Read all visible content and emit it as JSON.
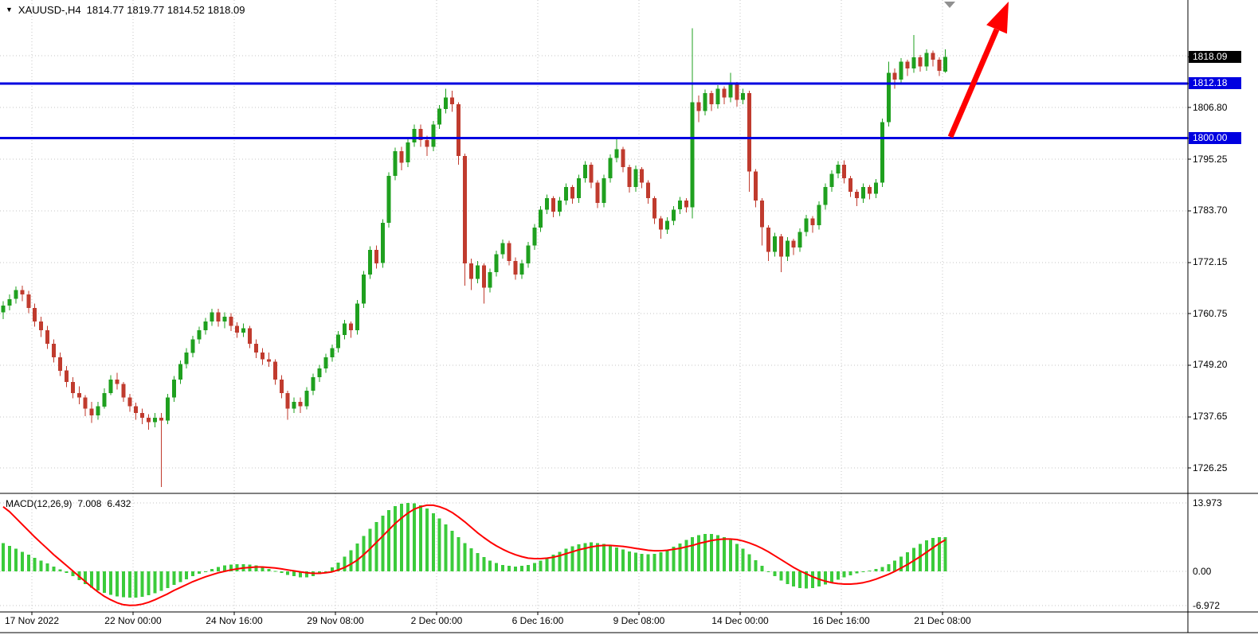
{
  "header": {
    "collapse_icon": "▼",
    "symbol": "XAUUSD-,H4",
    "ohlc": "1814.77 1819.77 1814.52 1818.09"
  },
  "macd_header": {
    "label": "MACD(12,26,9)",
    "main_value": "7.008",
    "signal_value": "6.432"
  },
  "price_axis": {
    "items": [
      {
        "text": "1818.09",
        "value": 1818.09,
        "kind": "current-tag"
      },
      {
        "text": "1812.18",
        "value": 1812.18,
        "kind": "level-tag"
      },
      {
        "text": "1806.80",
        "value": 1806.8,
        "kind": "plain"
      },
      {
        "text": "1800.00",
        "value": 1800.0,
        "kind": "level-tag"
      },
      {
        "text": "1795.25",
        "value": 1795.25,
        "kind": "plain"
      },
      {
        "text": "1783.70",
        "value": 1783.7,
        "kind": "plain"
      },
      {
        "text": "1772.15",
        "value": 1772.15,
        "kind": "plain"
      },
      {
        "text": "1760.75",
        "value": 1760.75,
        "kind": "plain"
      },
      {
        "text": "1749.20",
        "value": 1749.2,
        "kind": "plain"
      },
      {
        "text": "1737.65",
        "value": 1737.65,
        "kind": "plain"
      },
      {
        "text": "1726.25",
        "value": 1726.25,
        "kind": "plain"
      }
    ]
  },
  "annotations": [
    {
      "type": "trend-arrow",
      "direction": "up-right",
      "color": "#ff0000"
    },
    {
      "type": "chart-shift-marker",
      "color": "#909090"
    }
  ],
  "colors": {
    "bull": "#1fa01f",
    "bear": "#c03b2e",
    "macd_hist": "#3bcb3b",
    "signal": "#ff0000",
    "level_line": "#0000e0",
    "grid": "#c6c6c6",
    "frame": "#000000",
    "current_tag_bg": "#000000",
    "level_tag_bg": "#0000e0",
    "arrow": "#ff0000",
    "shift_marker": "#909090",
    "text": "#000000"
  },
  "chart_data": {
    "type": "candlestick",
    "symbol": "XAUUSD-",
    "timeframe": "H4",
    "title": "XAUUSD-,H4 1814.77 1819.77 1814.52 1818.09",
    "current_price": 1818.09,
    "horizontal_levels": [
      1812.18,
      1800.0
    ],
    "ylim": [
      1720.5,
      1830.8
    ],
    "y_grid": [
      1818.35,
      1806.8,
      1795.25,
      1783.7,
      1772.15,
      1760.75,
      1749.2,
      1737.65,
      1726.25
    ],
    "x_tick_labels": [
      "17 Nov 2022",
      "22 Nov 00:00",
      "24 Nov 16:00",
      "29 Nov 08:00",
      "2 Dec 00:00",
      "6 Dec 16:00",
      "9 Dec 08:00",
      "14 Dec 00:00",
      "16 Dec 16:00",
      "21 Dec 08:00"
    ],
    "candles": [
      [
        1761,
        1763.5,
        1759.5,
        1762.5
      ],
      [
        1762.5,
        1765,
        1761.5,
        1764
      ],
      [
        1764,
        1766.8,
        1763,
        1766
      ],
      [
        1766,
        1767,
        1763.5,
        1765
      ],
      [
        1765,
        1765.8,
        1760.8,
        1762
      ],
      [
        1762,
        1763,
        1757.8,
        1759
      ],
      [
        1759,
        1760,
        1755.5,
        1757
      ],
      [
        1757,
        1758,
        1752.8,
        1754
      ],
      [
        1754,
        1755,
        1749.8,
        1751
      ],
      [
        1751,
        1752,
        1746.8,
        1748
      ],
      [
        1748,
        1749,
        1744.3,
        1745.5
      ],
      [
        1745.5,
        1746.5,
        1741.8,
        1743
      ],
      [
        1743,
        1744.5,
        1740.5,
        1742
      ],
      [
        1742,
        1742.5,
        1737.8,
        1739.5
      ],
      [
        1739.5,
        1741,
        1736.3,
        1738
      ],
      [
        1738,
        1741,
        1737,
        1740
      ],
      [
        1740,
        1744,
        1739.5,
        1743
      ],
      [
        1743,
        1747,
        1742.5,
        1746
      ],
      [
        1746,
        1747.5,
        1743.8,
        1745
      ],
      [
        1745,
        1745.5,
        1741,
        1742
      ],
      [
        1742,
        1742.8,
        1738.8,
        1740
      ],
      [
        1740,
        1740.8,
        1737,
        1738.5
      ],
      [
        1738.5,
        1739.5,
        1736,
        1737.5
      ],
      [
        1737.5,
        1738.3,
        1734.8,
        1736.5
      ],
      [
        1736.5,
        1738.5,
        1735.3,
        1737.5
      ],
      [
        1737.5,
        1738.5,
        1722,
        1736.8
      ],
      [
        1736.8,
        1742.8,
        1736,
        1742
      ],
      [
        1742,
        1746.8,
        1741,
        1746
      ],
      [
        1746,
        1750.3,
        1745,
        1749.5
      ],
      [
        1749.5,
        1753,
        1748.5,
        1752
      ],
      [
        1752,
        1755.8,
        1751,
        1755
      ],
      [
        1755,
        1757.8,
        1754,
        1757
      ],
      [
        1757,
        1759.8,
        1756,
        1759
      ],
      [
        1759,
        1761.8,
        1758,
        1761
      ],
      [
        1761,
        1761.8,
        1757.8,
        1759
      ],
      [
        1759,
        1761,
        1757.5,
        1760
      ],
      [
        1760,
        1760.8,
        1756.8,
        1758
      ],
      [
        1758,
        1758.8,
        1755.3,
        1756.5
      ],
      [
        1756.5,
        1758.5,
        1755.5,
        1757.5
      ],
      [
        1757.5,
        1758,
        1753,
        1754
      ],
      [
        1754,
        1755,
        1750.8,
        1752
      ],
      [
        1752,
        1753,
        1749.3,
        1750.5
      ],
      [
        1750.5,
        1752,
        1748.8,
        1750
      ],
      [
        1750,
        1750.5,
        1744.8,
        1746
      ],
      [
        1746,
        1747,
        1741.8,
        1743
      ],
      [
        1743,
        1743.5,
        1737,
        1739.5
      ],
      [
        1739.5,
        1742,
        1738.5,
        1741
      ],
      [
        1741,
        1742,
        1738.5,
        1740
      ],
      [
        1740,
        1744.3,
        1739.3,
        1743.5
      ],
      [
        1743.5,
        1747.3,
        1742.5,
        1746.5
      ],
      [
        1746.5,
        1749.3,
        1745.5,
        1748.5
      ],
      [
        1748.5,
        1751.8,
        1747.5,
        1751
      ],
      [
        1751,
        1753.8,
        1750,
        1753
      ],
      [
        1753,
        1756.8,
        1752,
        1756
      ],
      [
        1756,
        1759.3,
        1755,
        1758.5
      ],
      [
        1758.5,
        1759,
        1755.3,
        1757
      ],
      [
        1757,
        1763.8,
        1756,
        1763
      ],
      [
        1763,
        1770.3,
        1762,
        1769.5
      ],
      [
        1769.5,
        1775.8,
        1768.5,
        1775
      ],
      [
        1775,
        1776,
        1770.8,
        1772
      ],
      [
        1772,
        1781.8,
        1771,
        1781
      ],
      [
        1781,
        1792.3,
        1780,
        1791.5
      ],
      [
        1791.5,
        1797.8,
        1790.5,
        1797
      ],
      [
        1797,
        1798,
        1792.8,
        1794.5
      ],
      [
        1794.5,
        1799.8,
        1793.5,
        1799
      ],
      [
        1799,
        1803,
        1798,
        1802
      ],
      [
        1802,
        1803,
        1798,
        1799.5
      ],
      [
        1799.5,
        1800.5,
        1796,
        1798
      ],
      [
        1798,
        1803.8,
        1797,
        1803
      ],
      [
        1803,
        1807.3,
        1802,
        1806.5
      ],
      [
        1806.5,
        1811,
        1805.5,
        1809
      ],
      [
        1809,
        1810.5,
        1805.8,
        1807.5
      ],
      [
        1807.5,
        1808,
        1794,
        1796
      ],
      [
        1796,
        1796.5,
        1767,
        1772
      ],
      [
        1772,
        1773,
        1766,
        1768.5
      ],
      [
        1768.5,
        1772.5,
        1767.5,
        1771.5
      ],
      [
        1771.5,
        1772,
        1763,
        1766.5
      ],
      [
        1766.5,
        1770.8,
        1765.5,
        1770
      ],
      [
        1770,
        1774.8,
        1769,
        1774
      ],
      [
        1774,
        1777.3,
        1773,
        1776.5
      ],
      [
        1776.5,
        1777,
        1771.5,
        1772.5
      ],
      [
        1772.5,
        1773.3,
        1768.3,
        1769.5
      ],
      [
        1769.5,
        1772.8,
        1768.5,
        1772
      ],
      [
        1772,
        1776.8,
        1771,
        1776
      ],
      [
        1776,
        1780.8,
        1775,
        1780
      ],
      [
        1780,
        1784.8,
        1779,
        1784
      ],
      [
        1784,
        1787.3,
        1783,
        1786.5
      ],
      [
        1786.5,
        1787,
        1782.3,
        1783.5
      ],
      [
        1783.5,
        1786.8,
        1782.5,
        1786
      ],
      [
        1786,
        1789.8,
        1785,
        1789
      ],
      [
        1789,
        1789.5,
        1785.3,
        1786.5
      ],
      [
        1786.5,
        1791.8,
        1785.5,
        1791
      ],
      [
        1791,
        1794.8,
        1790,
        1794
      ],
      [
        1794,
        1794.5,
        1788.8,
        1790
      ],
      [
        1790,
        1790.5,
        1784.3,
        1785.5
      ],
      [
        1785.5,
        1791.8,
        1784.5,
        1791
      ],
      [
        1791,
        1796.3,
        1790,
        1795.5
      ],
      [
        1795.5,
        1800,
        1794.5,
        1797.5
      ],
      [
        1797.5,
        1798,
        1792.3,
        1793.5
      ],
      [
        1793.5,
        1794,
        1787.8,
        1789
      ],
      [
        1789,
        1793.8,
        1788,
        1793
      ],
      [
        1793,
        1793.5,
        1788.8,
        1790
      ],
      [
        1790,
        1790.5,
        1785.3,
        1786.5
      ],
      [
        1786.5,
        1787,
        1780.8,
        1782
      ],
      [
        1782,
        1782.5,
        1777.5,
        1779.5
      ],
      [
        1779.5,
        1782.3,
        1778.5,
        1781.5
      ],
      [
        1781.5,
        1784.8,
        1780.5,
        1784
      ],
      [
        1784,
        1786.8,
        1783,
        1786
      ],
      [
        1786,
        1786.5,
        1783.3,
        1784.5
      ],
      [
        1784.5,
        1824.5,
        1782,
        1808
      ],
      [
        1808,
        1809.5,
        1803.5,
        1806
      ],
      [
        1806,
        1810.8,
        1805,
        1810
      ],
      [
        1810,
        1810.5,
        1806,
        1807.5
      ],
      [
        1807.5,
        1811.8,
        1806.5,
        1811
      ],
      [
        1811,
        1811.5,
        1807.5,
        1809
      ],
      [
        1809,
        1814.5,
        1808,
        1812
      ],
      [
        1812,
        1812.5,
        1807,
        1808.5
      ],
      [
        1808.5,
        1811,
        1807.5,
        1810
      ],
      [
        1810,
        1810.5,
        1788,
        1792.5
      ],
      [
        1792.5,
        1793,
        1784.5,
        1786
      ],
      [
        1786,
        1786.5,
        1776,
        1780
      ],
      [
        1780,
        1780.5,
        1772.5,
        1774.5
      ],
      [
        1774.5,
        1778.8,
        1773.5,
        1778
      ],
      [
        1778,
        1778.5,
        1770,
        1773.5
      ],
      [
        1773.5,
        1777.8,
        1772.5,
        1777
      ],
      [
        1777,
        1777.5,
        1773.8,
        1775.5
      ],
      [
        1775.5,
        1779.8,
        1774.5,
        1779
      ],
      [
        1779,
        1782.8,
        1778,
        1782
      ],
      [
        1782,
        1782.5,
        1778.8,
        1780.5
      ],
      [
        1780.5,
        1785.8,
        1779.5,
        1785
      ],
      [
        1785,
        1789.8,
        1784,
        1789
      ],
      [
        1789,
        1792.8,
        1788,
        1792
      ],
      [
        1792,
        1794.8,
        1791,
        1794
      ],
      [
        1794,
        1795,
        1789.8,
        1791
      ],
      [
        1791,
        1791.5,
        1786.8,
        1788
      ],
      [
        1788,
        1788.5,
        1784.8,
        1786.5
      ],
      [
        1786.5,
        1789.8,
        1785.5,
        1789
      ],
      [
        1789,
        1789.5,
        1786.3,
        1787.5
      ],
      [
        1787.5,
        1790.8,
        1786.5,
        1790
      ],
      [
        1790,
        1804.3,
        1789,
        1803.5
      ],
      [
        1803.5,
        1817,
        1802.5,
        1814.5
      ],
      [
        1814.5,
        1815.5,
        1811,
        1813
      ],
      [
        1813,
        1817.8,
        1812,
        1817
      ],
      [
        1817,
        1817.5,
        1813.8,
        1815.5
      ],
      [
        1815.5,
        1823,
        1814.5,
        1818
      ],
      [
        1818,
        1818.5,
        1814.8,
        1816
      ],
      [
        1816,
        1819.8,
        1815,
        1819
      ],
      [
        1819,
        1819.5,
        1816,
        1817.5
      ],
      [
        1817.5,
        1818,
        1813.8,
        1815
      ],
      [
        1814.77,
        1819.77,
        1814.52,
        1818.09
      ]
    ],
    "indicator": {
      "name": "MACD(12,26,9)",
      "current_values": [
        7.008,
        6.432
      ],
      "y_ticks": [
        {
          "text": "13.973",
          "value": 13.973
        },
        {
          "text": "0.00",
          "value": 0
        },
        {
          "text": "-6.972",
          "value": -6.972
        }
      ],
      "histogram": [
        5.8,
        5.2,
        4.6,
        4.0,
        3.4,
        2.8,
        2.2,
        1.6,
        1.0,
        0.4,
        -0.3,
        -1.0,
        -1.8,
        -2.6,
        -3.3,
        -3.9,
        -4.4,
        -4.8,
        -5.1,
        -5.3,
        -5.4,
        -5.4,
        -5.2,
        -4.9,
        -4.5,
        -4.0,
        -3.4,
        -2.8,
        -2.2,
        -1.6,
        -1.0,
        -0.5,
        0.0,
        0.5,
        0.9,
        1.2,
        1.4,
        1.5,
        1.5,
        1.4,
        1.2,
        0.9,
        0.5,
        0.1,
        -0.3,
        -0.7,
        -1.0,
        -1.2,
        -1.2,
        -1.0,
        -0.6,
        0.0,
        0.8,
        1.8,
        3.0,
        4.3,
        5.7,
        7.2,
        8.7,
        10.1,
        11.4,
        12.5,
        13.3,
        13.8,
        14.0,
        13.9,
        13.5,
        12.8,
        11.9,
        10.8,
        9.6,
        8.3,
        7.0,
        5.8,
        4.7,
        3.7,
        2.9,
        2.2,
        1.7,
        1.3,
        1.1,
        1.0,
        1.1,
        1.3,
        1.7,
        2.2,
        2.8,
        3.4,
        4.0,
        4.6,
        5.1,
        5.5,
        5.8,
        5.9,
        5.8,
        5.6,
        5.3,
        4.9,
        4.5,
        4.1,
        3.8,
        3.6,
        3.5,
        3.6,
        3.9,
        4.4,
        5.0,
        5.7,
        6.4,
        7.0,
        7.4,
        7.6,
        7.6,
        7.4,
        7.0,
        6.4,
        5.6,
        4.6,
        3.5,
        2.3,
        1.1,
        0.0,
        -1.0,
        -1.9,
        -2.6,
        -3.1,
        -3.4,
        -3.5,
        -3.4,
        -3.1,
        -2.7,
        -2.2,
        -1.7,
        -1.2,
        -0.8,
        -0.4,
        -0.1,
        0.2,
        0.5,
        0.9,
        1.5,
        2.2,
        3.0,
        3.9,
        4.8,
        5.6,
        6.3,
        6.8,
        7.0,
        7.008
      ],
      "signal": [
        13.2,
        12.2,
        10.9,
        9.6,
        8.3,
        7.0,
        5.8,
        4.6,
        3.4,
        2.3,
        1.2,
        0.1,
        -1.0,
        -2.1,
        -3.2,
        -4.2,
        -5.1,
        -5.8,
        -6.4,
        -6.8,
        -6.95,
        -6.9,
        -6.7,
        -6.3,
        -5.8,
        -5.2,
        -4.6,
        -3.9,
        -3.3,
        -2.7,
        -2.1,
        -1.6,
        -1.1,
        -0.7,
        -0.3,
        0.0,
        0.3,
        0.5,
        0.7,
        0.8,
        0.9,
        0.9,
        0.8,
        0.7,
        0.5,
        0.3,
        0.1,
        -0.1,
        -0.3,
        -0.4,
        -0.4,
        -0.3,
        -0.1,
        0.3,
        0.8,
        1.5,
        2.3,
        3.4,
        4.6,
        5.9,
        7.2,
        8.5,
        9.8,
        10.9,
        11.9,
        12.7,
        13.2,
        13.5,
        13.5,
        13.2,
        12.7,
        12.0,
        11.1,
        10.1,
        9.0,
        7.9,
        6.9,
        6.0,
        5.2,
        4.5,
        3.9,
        3.4,
        3.0,
        2.7,
        2.6,
        2.6,
        2.7,
        2.9,
        3.2,
        3.6,
        4.0,
        4.4,
        4.7,
        5.0,
        5.2,
        5.3,
        5.3,
        5.2,
        5.1,
        4.9,
        4.7,
        4.5,
        4.3,
        4.2,
        4.2,
        4.3,
        4.5,
        4.7,
        5.0,
        5.3,
        5.7,
        6.0,
        6.3,
        6.5,
        6.6,
        6.6,
        6.5,
        6.2,
        5.8,
        5.3,
        4.7,
        4.0,
        3.2,
        2.4,
        1.6,
        0.8,
        0.1,
        -0.5,
        -1.1,
        -1.6,
        -2.0,
        -2.3,
        -2.5,
        -2.6,
        -2.6,
        -2.5,
        -2.3,
        -2.0,
        -1.6,
        -1.1,
        -0.6,
        0.0,
        0.7,
        1.4,
        2.2,
        3.0,
        3.9,
        4.8,
        5.7,
        6.432
      ]
    }
  }
}
